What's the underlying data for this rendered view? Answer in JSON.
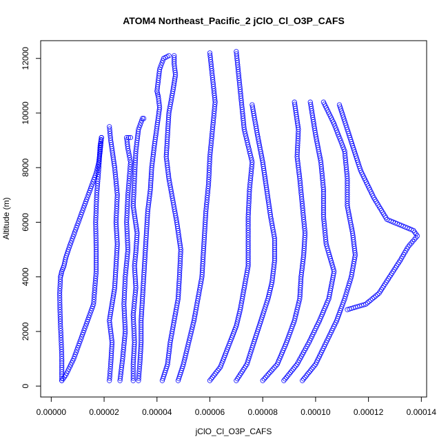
{
  "chart_data": {
    "type": "scatter",
    "title": "ATOM4 Northeast_Pacific_2 jClO_Cl_O3P_CAFS",
    "xlabel": "jClO_Cl_O3P_CAFS",
    "ylabel": "Altitude (m)",
    "xlim": [
      -4e-06,
      0.000142
    ],
    "ylim": [
      -400,
      12650
    ],
    "x_ticks": [
      "0.00000",
      "0.00002",
      "0.00004",
      "0.00006",
      "0.00008",
      "0.00010",
      "0.00012",
      "0.00014"
    ],
    "y_ticks": [
      "0",
      "2000",
      "4000",
      "6000",
      "8000",
      "10000",
      "12000"
    ],
    "marker": "open-circle",
    "color": "#0000ff",
    "grid": false,
    "legend": "none",
    "profiles": [
      {
        "x": [
          4e-06,
          4e-06,
          3.8e-06,
          3.5e-06,
          3.3e-06,
          3.2e-06,
          3.5e-06,
          4e-06,
          4.8e-06,
          5.5e-06,
          6.5e-06,
          8e-06,
          9.5e-06,
          1.1e-05,
          1.25e-05,
          1.4e-05,
          1.55e-05,
          1.7e-05,
          1.8e-05,
          1.85e-05,
          1.88e-05,
          1.9e-05,
          1.9e-05
        ],
        "y": [
          200,
          1000,
          1600,
          2200,
          2800,
          3400,
          4000,
          4200,
          4400,
          4700,
          5000,
          5400,
          5800,
          6200,
          6600,
          7000,
          7400,
          7800,
          8200,
          8600,
          8900,
          9100,
          9100
        ]
      },
      {
        "x": [
          4e-06,
          5.5e-06,
          7e-06,
          8.5e-06,
          1e-05,
          1.15e-05,
          1.3e-05,
          1.45e-05,
          1.6e-05,
          1.65e-05,
          1.7e-05,
          1.7e-05,
          1.68e-05,
          1.72e-05,
          1.8e-05,
          1.85e-05,
          1.9e-05
        ],
        "y": [
          200,
          400,
          700,
          1000,
          1400,
          1800,
          2200,
          2600,
          3000,
          3600,
          4200,
          5000,
          6000,
          7000,
          8000,
          8800,
          9100
        ]
      },
      {
        "x": [
          2.2e-05,
          2.25e-05,
          2.3e-05,
          2.2e-05,
          2.3e-05,
          2.4e-05,
          2.45e-05,
          2.5e-05,
          2.45e-05,
          2.5e-05,
          2.4e-05,
          2.25e-05,
          2.2e-05
        ],
        "y": [
          200,
          800,
          1600,
          2400,
          3000,
          3600,
          4400,
          5200,
          6000,
          7000,
          8000,
          9000,
          9500
        ]
      },
      {
        "x": [
          2.6e-05,
          2.7e-05,
          2.8e-05,
          2.75e-05,
          2.8e-05,
          2.9e-05,
          2.85e-05,
          2.9e-05,
          2.95e-05,
          3e-05,
          2.9e-05,
          2.85e-05,
          3e-05
        ],
        "y": [
          200,
          1000,
          2000,
          3000,
          4000,
          5000,
          6000,
          7000,
          7600,
          8200,
          8700,
          9100,
          9100
        ]
      },
      {
        "x": [
          3.1e-05,
          3.1e-05,
          3.15e-05,
          3.1e-05,
          3.2e-05,
          3.15e-05,
          3.2e-05,
          3.25e-05,
          3.1e-05,
          3.15e-05,
          3.2e-05,
          3.3e-05,
          3.45e-05,
          3.5e-05
        ],
        "y": [
          200,
          800,
          1600,
          2600,
          3600,
          4400,
          4900,
          5600,
          6600,
          7600,
          8600,
          9400,
          9800,
          9800
        ]
      },
      {
        "x": [
          3.3e-05,
          3.35e-05,
          3.4e-05,
          3.4e-05,
          3.45e-05,
          3.5e-05,
          3.55e-05,
          3.6e-05,
          3.65e-05,
          3.75e-05,
          3.8e-05,
          3.9e-05,
          4e-05,
          4.1e-05,
          4.05e-05,
          4e-05,
          4.05e-05,
          4.1e-05,
          4.25e-05,
          4.45e-05
        ],
        "y": [
          200,
          800,
          1600,
          2400,
          3200,
          4000,
          4800,
          5600,
          6400,
          7200,
          8000,
          8800,
          9500,
          10200,
          10600,
          10800,
          11200,
          11600,
          12000,
          12100
        ]
      },
      {
        "x": [
          4.2e-05,
          4.4e-05,
          4.5e-05,
          4.65e-05,
          4.8e-05,
          4.85e-05,
          4.9e-05,
          4.75e-05,
          4.6e-05,
          4.45e-05,
          4.35e-05,
          4.4e-05,
          4.45e-05,
          4.6e-05,
          4.7e-05,
          4.65e-05,
          4.65e-05
        ],
        "y": [
          200,
          800,
          1600,
          2400,
          3200,
          4000,
          5000,
          6000,
          6800,
          7600,
          8400,
          9200,
          10000,
          10800,
          11400,
          11800,
          12100
        ]
      },
      {
        "x": [
          4.8e-05,
          5e-05,
          5.2e-05,
          5.4e-05,
          5.55e-05,
          5.7e-05,
          5.75e-05,
          5.8e-05,
          5.85e-05,
          5.95e-05,
          6e-05,
          6.1e-05,
          6.2e-05,
          6e-05
        ],
        "y": [
          200,
          800,
          1600,
          2400,
          3200,
          4000,
          4800,
          5600,
          6400,
          7400,
          8400,
          9400,
          10400,
          12200
        ]
      },
      {
        "x": [
          6e-05,
          6.4e-05,
          6.6e-05,
          6.8e-05,
          7e-05,
          7.15e-05,
          7.3e-05,
          7.45e-05,
          7.45e-05,
          7.45e-05,
          7.5e-05,
          7.6e-05,
          7.3e-05,
          7e-05
        ],
        "y": [
          200,
          700,
          1200,
          1700,
          2200,
          2800,
          3600,
          4400,
          5200,
          6200,
          7200,
          8200,
          9400,
          12250
        ]
      },
      {
        "x": [
          7e-05,
          7.4e-05,
          7.6e-05,
          7.8e-05,
          8e-05,
          8.2e-05,
          8.35e-05,
          8.45e-05,
          8.45e-05,
          8.3e-05,
          8.15e-05,
          8e-05,
          7.8e-05,
          7.6e-05
        ],
        "y": [
          200,
          800,
          1400,
          2000,
          2600,
          3200,
          3800,
          4600,
          5400,
          6200,
          7200,
          8200,
          9200,
          10300
        ]
      },
      {
        "x": [
          8e-05,
          8.55e-05,
          8.9e-05,
          9.2e-05,
          9.4e-05,
          9.45e-05,
          9.55e-05,
          9.6e-05,
          9.5e-05,
          9.4e-05,
          9.3e-05,
          9.35e-05,
          9.2e-05
        ],
        "y": [
          200,
          800,
          1600,
          2400,
          3200,
          4000,
          4800,
          5600,
          6600,
          7600,
          8400,
          9400,
          10400
        ]
      },
      {
        "x": [
          8.8e-05,
          9.3e-05,
          9.75e-05,
          0.0001015,
          0.000105,
          0.000107,
          0.000104,
          0.000103,
          0.000103,
          0.000102,
          0.0001,
          9.8e-05
        ],
        "y": [
          200,
          800,
          1600,
          2400,
          3200,
          4200,
          5200,
          6200,
          7200,
          8200,
          9200,
          10400
        ]
      },
      {
        "x": [
          9.5e-05,
          0.0001,
          0.000104,
          0.000108,
          0.000111,
          0.0001135,
          0.000115,
          0.000114,
          0.000112,
          0.000112,
          0.000111,
          0.000107,
          0.000103
        ],
        "y": [
          200,
          800,
          1600,
          2400,
          3200,
          4000,
          4800,
          5600,
          6600,
          7600,
          8600,
          9600,
          10400
        ]
      },
      {
        "x": [
          0.000112,
          0.000119,
          0.000124,
          0.000128,
          0.000132,
          0.000135,
          0.0001385,
          0.000137,
          0.000127,
          0.000122,
          0.000117,
          0.000113,
          0.000109
        ],
        "y": [
          2800,
          3000,
          3400,
          4000,
          4600,
          5100,
          5500,
          5700,
          6100,
          6900,
          7900,
          9100,
          10300
        ]
      }
    ]
  }
}
